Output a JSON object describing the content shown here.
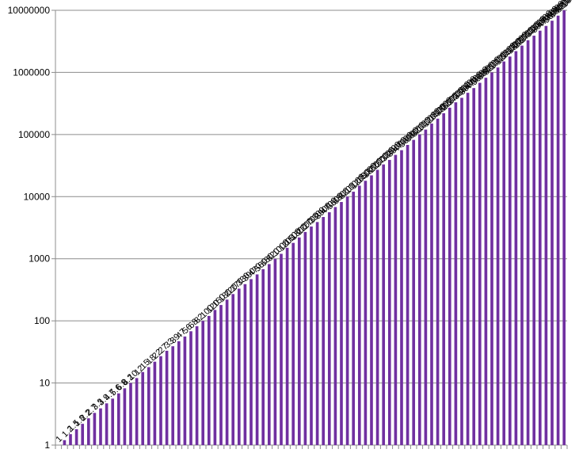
{
  "chart_data": {
    "type": "bar",
    "title": "",
    "xlabel": "",
    "ylabel": "",
    "yscale": "log",
    "ylim": [
      1,
      10000000
    ],
    "y_ticks": [
      "1",
      "10",
      "100",
      "1000",
      "10000",
      "100000",
      "1000000",
      "10000000"
    ],
    "grid": "horizontal",
    "legend": "none",
    "bar_color": "#7030a0",
    "series": [
      {
        "values": [
          1,
          1.2,
          1.5,
          1.8,
          2.2,
          2.7,
          3.3,
          3.9,
          4.7,
          5.6,
          6.8,
          8.2,
          10,
          12,
          15,
          18,
          22,
          27,
          33,
          39,
          47,
          56,
          68,
          82,
          100,
          120,
          150,
          180,
          220,
          270,
          330,
          390,
          470,
          560,
          680,
          820,
          1000,
          1200,
          1500,
          1800,
          2200,
          2700,
          3300,
          3900,
          4700,
          5600,
          6800,
          8200,
          10000,
          12000,
          15000,
          18000,
          22000,
          27000,
          33000,
          39000,
          47000,
          56000,
          68000,
          82000,
          100000,
          120000,
          150000,
          180000,
          220000,
          270000,
          330000,
          390000,
          470000,
          560000,
          680000,
          820000,
          1000000,
          1200000,
          1500000,
          1800000,
          2200000,
          2700000,
          3300000,
          3900000,
          4700000,
          5600000,
          6800000,
          8200000,
          10000000
        ]
      }
    ],
    "data_labels": [
      "1",
      "1.2",
      "1.5",
      "1.8",
      "2.2",
      "2.7",
      "3.3",
      "3.9",
      "4.7",
      "5.6",
      "6.8",
      "8.2",
      "10",
      "12",
      "15",
      "18",
      "22",
      "27",
      "33",
      "39",
      "47",
      "56",
      "68",
      "82",
      "100",
      "120",
      "150",
      "180",
      "220",
      "270",
      "330",
      "390",
      "470",
      "560",
      "680",
      "820",
      "1000",
      "1200",
      "1500",
      "1800",
      "2200",
      "2700",
      "3300",
      "3900",
      "4700",
      "5600",
      "6800",
      "8200",
      "10000",
      "12000",
      "15000",
      "18000",
      "22000",
      "27000",
      "33000",
      "39000",
      "47000",
      "56000",
      "68000",
      "82000",
      "100000",
      "120000",
      "150000",
      "180000",
      "220000",
      "270000",
      "330000",
      "390000",
      "470000",
      "560000",
      "680000",
      "820000",
      "1000000",
      "1200000",
      "1500000",
      "1800000",
      "2200000",
      "2700000",
      "3300000",
      "3900000",
      "4700000",
      "5600000",
      "6800000",
      "8200000",
      "10000000"
    ]
  }
}
